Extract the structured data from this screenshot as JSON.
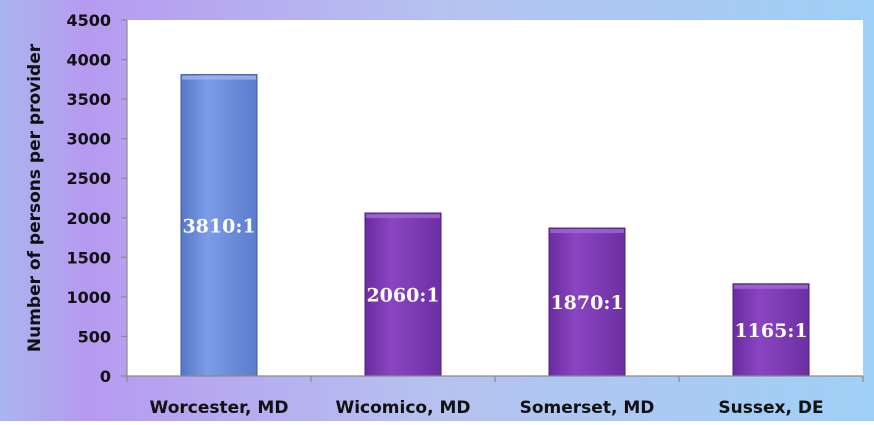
{
  "chart_data": {
    "type": "bar",
    "title": "",
    "xlabel": "",
    "ylabel": "Number of persons per provider",
    "ylim": [
      0,
      4500
    ],
    "yticks": [
      0,
      500,
      1000,
      1500,
      2000,
      2500,
      3000,
      3500,
      4000,
      4500
    ],
    "categories": [
      "Worcester, MD",
      "Wicomico, MD",
      "Somerset, MD",
      "Sussex, DE"
    ],
    "values": [
      3810,
      2060,
      1870,
      1165
    ],
    "data_labels": [
      "3810:1",
      "2060:1",
      "1870:1",
      "1165:1"
    ],
    "bar_colors": [
      "#6c8fdc",
      "#7a3bb0",
      "#7a3bb0",
      "#7a3bb0"
    ],
    "grid": false,
    "legend": "none"
  }
}
